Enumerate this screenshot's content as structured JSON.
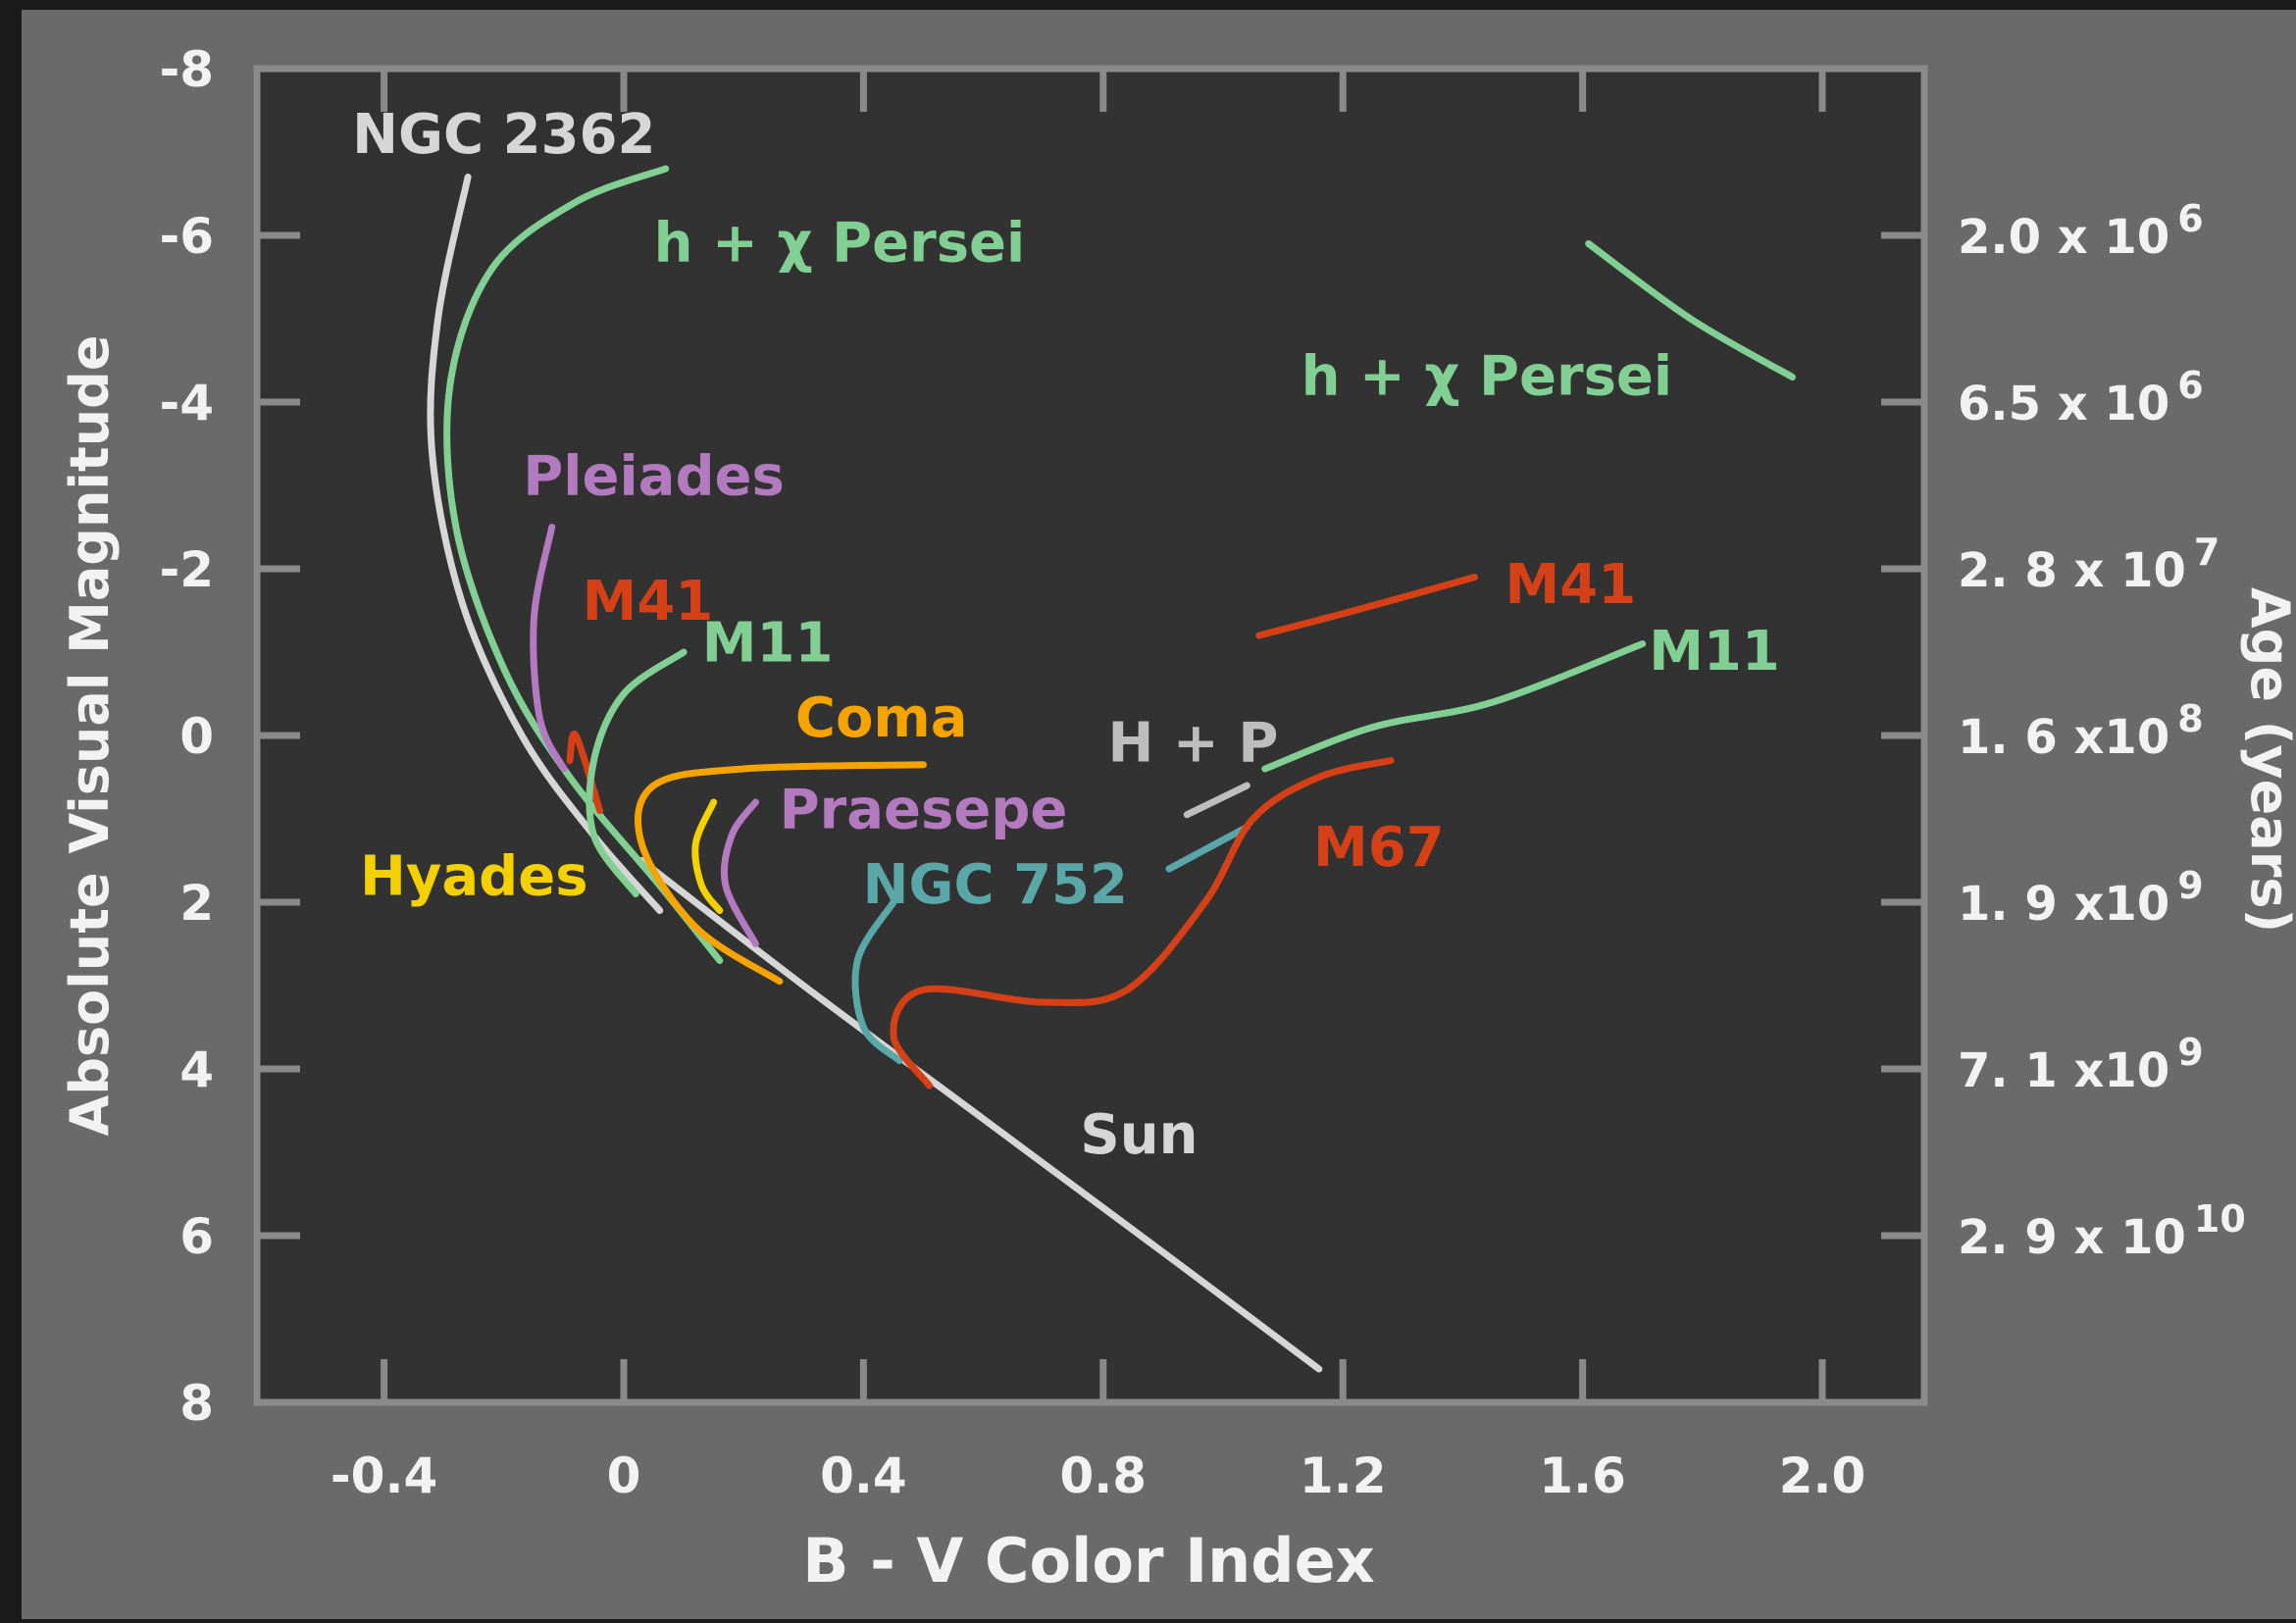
{
  "colors": {
    "page_bg": "#1b1a1a",
    "panel": "#6a6a6a",
    "plot_bg": "#323232",
    "frame": "#8a8a8a",
    "tick_text": "#f2f2f2",
    "white_line": "#d6d6d6",
    "green": "#82cf94",
    "purple": "#b37ac0",
    "red": "#d64016",
    "orange": "#f5a300",
    "yellow": "#f5d000",
    "teal": "#5aa7a9",
    "grey": "#bdbdbd"
  },
  "chart_data": {
    "type": "line",
    "title": "",
    "xlabel": "B - V Color Index",
    "ylabel": "Absolute Visual Magnitude",
    "y2label": "Age (years)",
    "xlim": [
      -0.62,
      2.18
    ],
    "ylim": [
      -8,
      8
    ],
    "y_inverted": true,
    "grid": false,
    "xticks": [
      -0.4,
      0,
      0.4,
      0.8,
      1.2,
      1.6,
      2.0
    ],
    "xtick_labels": [
      "-0.4",
      "0",
      "0.4",
      "0.8",
      "1.2",
      "1.6",
      "2.0"
    ],
    "yticks": [
      -8,
      -6,
      -4,
      -2,
      0,
      2,
      4,
      6,
      8
    ],
    "ytick_labels": [
      "-8",
      "-6",
      "-4",
      "-2",
      "0",
      "2",
      "4",
      "6",
      "8"
    ],
    "age_ticks": [
      {
        "y": -6,
        "mantissa": "2.0 x 10",
        "exponent": "6"
      },
      {
        "y": -4,
        "mantissa": "6.5 x 10",
        "exponent": "6"
      },
      {
        "y": -2,
        "mantissa": "2. 8 x 10",
        "exponent": "7"
      },
      {
        "y": 0,
        "mantissa": "1. 6  x10",
        "exponent": "8"
      },
      {
        "y": 2,
        "mantissa": "1. 9  x10",
        "exponent": "9"
      },
      {
        "y": 4,
        "mantissa": "7. 1  x10",
        "exponent": "9"
      },
      {
        "y": 6,
        "mantissa": "2. 9  x 10",
        "exponent": "10"
      }
    ],
    "series": [
      {
        "id": "sun-main-sequence",
        "color": "white_line",
        "points": [
          [
            0.03,
            1.5
          ],
          [
            0.3,
            3.0
          ],
          [
            0.6,
            4.6
          ],
          [
            0.9,
            6.2
          ],
          [
            1.16,
            7.6
          ]
        ]
      },
      {
        "id": "ngc2362",
        "color": "white_line",
        "points": [
          [
            -0.26,
            -6.7
          ],
          [
            -0.31,
            -5.0
          ],
          [
            -0.32,
            -3.4
          ],
          [
            -0.27,
            -1.6
          ],
          [
            -0.17,
            0.0
          ],
          [
            -0.05,
            1.2
          ],
          [
            0.06,
            2.1
          ]
        ]
      },
      {
        "id": "h-chi-persei",
        "color": "green",
        "points": [
          [
            0.07,
            -6.8
          ],
          [
            -0.08,
            -6.4
          ],
          [
            -0.22,
            -5.6
          ],
          [
            -0.29,
            -4.2
          ],
          [
            -0.28,
            -2.5
          ],
          [
            -0.2,
            -0.8
          ],
          [
            -0.09,
            0.5
          ],
          [
            0.06,
            1.8
          ],
          [
            0.16,
            2.7
          ]
        ]
      },
      {
        "id": "h-chi-persei-giants",
        "color": "green",
        "points": [
          [
            1.61,
            -5.9
          ],
          [
            1.78,
            -5.0
          ],
          [
            1.95,
            -4.3
          ]
        ]
      },
      {
        "id": "pleiades",
        "color": "purple",
        "points": [
          [
            -0.12,
            -2.5
          ],
          [
            -0.15,
            -1.4
          ],
          [
            -0.14,
            -0.2
          ],
          [
            -0.1,
            0.4
          ]
        ]
      },
      {
        "id": "m41",
        "color": "red",
        "points": [
          [
            -0.04,
            0.9
          ],
          [
            -0.08,
            0.0
          ],
          [
            -0.09,
            0.3
          ]
        ]
      },
      {
        "id": "m41-giants",
        "color": "red",
        "points": [
          [
            1.06,
            -1.2
          ],
          [
            1.22,
            -1.5
          ],
          [
            1.42,
            -1.9
          ]
        ]
      },
      {
        "id": "m11",
        "color": "green",
        "points": [
          [
            0.1,
            -1.0
          ],
          [
            0.0,
            -0.5
          ],
          [
            -0.05,
            0.3
          ],
          [
            -0.05,
            1.2
          ],
          [
            0.02,
            1.9
          ]
        ]
      },
      {
        "id": "m11-giants",
        "color": "green",
        "points": [
          [
            1.07,
            0.4
          ],
          [
            1.25,
            -0.1
          ],
          [
            1.45,
            -0.4
          ],
          [
            1.7,
            -1.1
          ]
        ]
      },
      {
        "id": "coma",
        "color": "orange",
        "points": [
          [
            0.5,
            0.35
          ],
          [
            0.2,
            0.4
          ],
          [
            0.05,
            0.6
          ],
          [
            0.03,
            1.3
          ],
          [
            0.12,
            2.3
          ],
          [
            0.26,
            2.95
          ]
        ]
      },
      {
        "id": "hyades",
        "color": "yellow",
        "points": [
          [
            0.15,
            0.8
          ],
          [
            0.12,
            1.3
          ],
          [
            0.13,
            1.8
          ],
          [
            0.16,
            2.1
          ]
        ]
      },
      {
        "id": "praesepe",
        "color": "purple",
        "points": [
          [
            0.22,
            0.8
          ],
          [
            0.18,
            1.2
          ],
          [
            0.17,
            1.8
          ],
          [
            0.22,
            2.5
          ]
        ]
      },
      {
        "id": "h-plus-p",
        "color": "grey",
        "points": [
          [
            0.94,
            0.95
          ],
          [
            1.04,
            0.6
          ]
        ]
      },
      {
        "id": "ngc752",
        "color": "teal",
        "points": [
          [
            0.45,
            2.0
          ],
          [
            0.39,
            2.7
          ],
          [
            0.4,
            3.5
          ],
          [
            0.46,
            3.9
          ]
        ]
      },
      {
        "id": "ngc752-giants",
        "color": "teal",
        "points": [
          [
            0.91,
            1.6
          ],
          [
            1.04,
            1.1
          ]
        ]
      },
      {
        "id": "m67",
        "color": "red",
        "points": [
          [
            0.51,
            4.2
          ],
          [
            0.45,
            3.6
          ],
          [
            0.5,
            3.05
          ],
          [
            0.7,
            3.2
          ],
          [
            0.84,
            3.05
          ],
          [
            0.97,
            2.0
          ],
          [
            1.05,
            1.0
          ],
          [
            1.16,
            0.5
          ],
          [
            1.28,
            0.3
          ]
        ]
      }
    ],
    "annotations": [
      {
        "text": "NGC 2362",
        "x": -0.2,
        "y": -7.2,
        "color": "white_line"
      },
      {
        "text": "h + χ Persei",
        "x": 0.36,
        "y": -5.9,
        "color": "green"
      },
      {
        "text": "h + χ Persei",
        "x": 1.44,
        "y": -4.3,
        "color": "green"
      },
      {
        "text": "Pleiades",
        "x": 0.05,
        "y": -3.1,
        "color": "purple"
      },
      {
        "text": "M41",
        "x": 0.04,
        "y": -1.6,
        "color": "red"
      },
      {
        "text": "M11",
        "x": 0.24,
        "y": -1.1,
        "color": "green"
      },
      {
        "text": "Coma",
        "x": 0.43,
        "y": -0.2,
        "color": "orange"
      },
      {
        "text": "Praesepe",
        "x": 0.5,
        "y": 0.9,
        "color": "purple"
      },
      {
        "text": "Hyades",
        "x": -0.25,
        "y": 1.7,
        "color": "yellow"
      },
      {
        "text": "NGC 752",
        "x": 0.62,
        "y": 1.8,
        "color": "teal"
      },
      {
        "text": "H + P",
        "x": 0.95,
        "y": 0.1,
        "color": "grey"
      },
      {
        "text": "M67",
        "x": 1.26,
        "y": 1.35,
        "color": "red"
      },
      {
        "text": "M41",
        "x": 1.58,
        "y": -1.8,
        "color": "red"
      },
      {
        "text": "M11",
        "x": 1.82,
        "y": -1.0,
        "color": "green"
      },
      {
        "text": "Sun",
        "x": 0.86,
        "y": 4.8,
        "color": "white_line"
      }
    ]
  }
}
